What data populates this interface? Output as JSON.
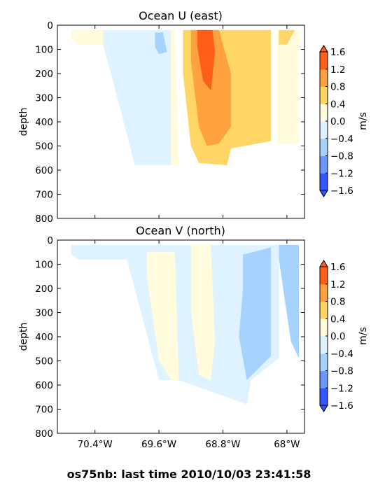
{
  "suptitle": "os75nb: last time 2010/10/03 23:41:58",
  "colorbar": {
    "label": "m/s",
    "levels": [
      -1.6,
      -1.2,
      -0.8,
      -0.4,
      0.0,
      0.4,
      0.8,
      1.2,
      1.6
    ],
    "tick_labels": [
      "−1.6",
      "−1.2",
      "−0.8",
      "−0.4",
      "0.0",
      "0.4",
      "0.8",
      "1.2",
      "1.6"
    ],
    "colors": [
      "#3355ff",
      "#6f95ff",
      "#a6d2ff",
      "#dff2ff",
      "#fffbdc",
      "#ffd666",
      "#ffa23d",
      "#ff5e1a"
    ],
    "extend": "both"
  },
  "x_tick_labels": [
    "70.4°W",
    "69.6°W",
    "68.8°W",
    "68°W"
  ],
  "chart_data": [
    {
      "type": "contourf",
      "title": "Ocean U (east)",
      "xlabel": "",
      "ylabel": "depth",
      "xlim": [
        -70.87,
        -67.78
      ],
      "ylim": [
        800,
        0
      ],
      "x_ticks": [
        -70.4,
        -69.6,
        -68.8,
        -68.0
      ],
      "y_ticks": [
        0,
        100,
        200,
        300,
        400,
        500,
        600,
        700,
        800
      ],
      "y_tick_labels": [
        "0",
        "100",
        "200",
        "300",
        "400",
        "500",
        "600",
        "700",
        "800"
      ],
      "units": "m/s",
      "regions": [
        {
          "level": "0.0 to 0.4",
          "x": [
            -70.7,
            -70.55,
            -70.1,
            -69.4,
            -69.35,
            -69.6,
            -70.0,
            -70.6,
            -70.7
          ],
          "depth": [
            20,
            20,
            20,
            20,
            580,
            575,
            80,
            80,
            60
          ]
        },
        {
          "level": "-0.4 to 0.0",
          "x": [
            -70.3,
            -69.7,
            -69.45,
            -69.45,
            -69.55,
            -69.9,
            -70.2,
            -70.3
          ],
          "depth": [
            20,
            20,
            20,
            580,
            580,
            580,
            200,
            80
          ]
        },
        {
          "level": "-0.8 to -0.4",
          "x": [
            -69.65,
            -69.55,
            -69.5,
            -69.6,
            -69.65
          ],
          "depth": [
            30,
            30,
            110,
            120,
            90
          ]
        },
        {
          "level": "0.4 to 0.8",
          "x": [
            -69.3,
            -68.2,
            -68.2,
            -68.7,
            -68.75,
            -69.1,
            -69.2,
            -69.3
          ],
          "depth": [
            20,
            20,
            480,
            510,
            580,
            570,
            500,
            200
          ]
        },
        {
          "level": "0.8 to 1.2",
          "x": [
            -69.2,
            -68.85,
            -68.8,
            -68.7,
            -68.7,
            -68.85,
            -69.0,
            -69.1,
            -69.2
          ],
          "depth": [
            20,
            20,
            80,
            200,
            420,
            490,
            500,
            420,
            150
          ]
        },
        {
          "level": "1.2 to 1.6",
          "x": [
            -69.12,
            -68.93,
            -68.9,
            -68.95,
            -69.05,
            -69.12
          ],
          "depth": [
            20,
            20,
            110,
            270,
            230,
            90
          ]
        },
        {
          "level": "0.0 to 0.4",
          "x": [
            -68.12,
            -67.85,
            -67.85,
            -68.12
          ],
          "depth": [
            20,
            20,
            490,
            490
          ]
        },
        {
          "level": "0.4 to 0.8",
          "x": [
            -68.1,
            -67.9,
            -68.0,
            -68.1
          ],
          "depth": [
            20,
            20,
            80,
            80
          ]
        }
      ]
    },
    {
      "type": "contourf",
      "title": "Ocean V (north)",
      "xlabel": "",
      "ylabel": "depth",
      "xlim": [
        -70.87,
        -67.78
      ],
      "ylim": [
        800,
        0
      ],
      "x_ticks": [
        -70.4,
        -69.6,
        -68.8,
        -68.0
      ],
      "y_ticks": [
        0,
        100,
        200,
        300,
        400,
        500,
        600,
        700,
        800
      ],
      "y_tick_labels": [
        "0",
        "100",
        "200",
        "300",
        "400",
        "500",
        "600",
        "700",
        "800"
      ],
      "units": "m/s",
      "regions": [
        {
          "level": "-0.4 to 0.0",
          "x": [
            -70.7,
            -68.1,
            -68.1,
            -68.45,
            -68.5,
            -69.35,
            -69.6,
            -70.0,
            -70.6,
            -70.7
          ],
          "depth": [
            20,
            20,
            490,
            580,
            680,
            580,
            580,
            80,
            80,
            60
          ]
        },
        {
          "level": "0.0 to 0.4",
          "x": [
            -69.75,
            -69.4,
            -69.35,
            -69.45,
            -69.6,
            -69.75
          ],
          "depth": [
            50,
            50,
            580,
            580,
            500,
            150
          ]
        },
        {
          "level": "0.0 to 0.4",
          "x": [
            -69.2,
            -68.95,
            -68.9,
            -68.95,
            -69.1,
            -69.2
          ],
          "depth": [
            20,
            20,
            420,
            580,
            560,
            300
          ]
        },
        {
          "level": "-0.8 to -0.4",
          "x": [
            -68.55,
            -68.2,
            -68.2,
            -68.5,
            -68.6,
            -68.55
          ],
          "depth": [
            60,
            30,
            480,
            580,
            400,
            200
          ]
        },
        {
          "level": "-0.8 to -0.4",
          "x": [
            -68.1,
            -67.85,
            -67.85,
            -67.95,
            -68.1
          ],
          "depth": [
            20,
            20,
            490,
            420,
            80
          ]
        }
      ]
    }
  ]
}
